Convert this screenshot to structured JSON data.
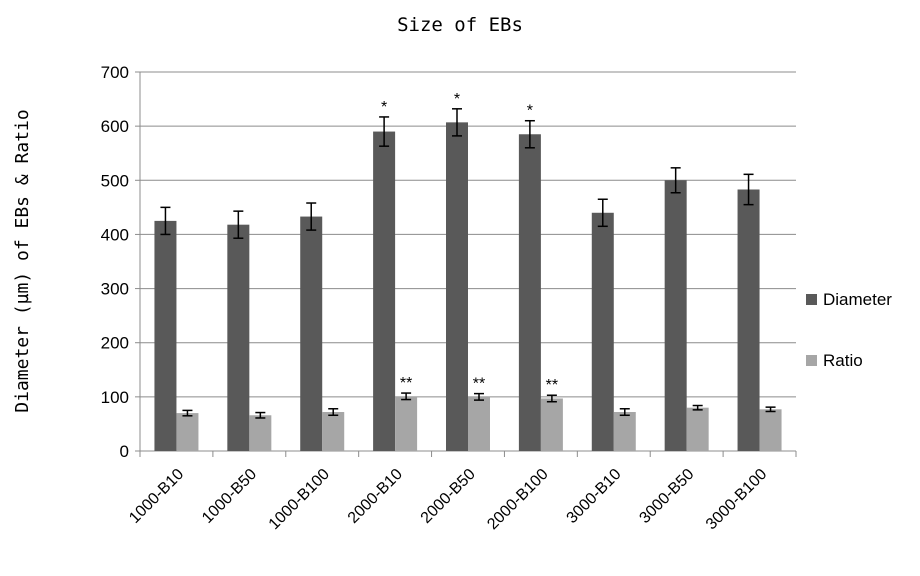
{
  "chart_data": {
    "type": "bar",
    "title": "Size of EBs",
    "xlabel": "",
    "ylabel": "Diameter (µm) of EBs & Ratio",
    "ylim": [
      0,
      700
    ],
    "yticks": [
      0,
      100,
      200,
      300,
      400,
      500,
      600,
      700
    ],
    "grid": "horizontal",
    "legend_position": "right",
    "categories": [
      "1000-B10",
      "1000-B50",
      "1000-B100",
      "2000-B10",
      "2000-B50",
      "2000-B100",
      "3000-B10",
      "3000-B50",
      "3000-B100"
    ],
    "series": [
      {
        "name": "Diameter",
        "color": "#595959",
        "values": [
          425,
          418,
          433,
          590,
          607,
          585,
          440,
          500,
          483
        ],
        "errors": [
          25,
          25,
          25,
          27,
          25,
          25,
          25,
          23,
          28
        ],
        "annotations": [
          "",
          "",
          "",
          "*",
          "*",
          "*",
          "",
          "",
          ""
        ]
      },
      {
        "name": "Ratio",
        "color": "#a6a6a6",
        "values": [
          70,
          66,
          72,
          101,
          100,
          97,
          72,
          80,
          77
        ],
        "errors": [
          5,
          5,
          6,
          6,
          6,
          6,
          6,
          4,
          4
        ],
        "annotations": [
          "",
          "",
          "",
          "**",
          "**",
          "**",
          "",
          "",
          ""
        ]
      }
    ]
  }
}
